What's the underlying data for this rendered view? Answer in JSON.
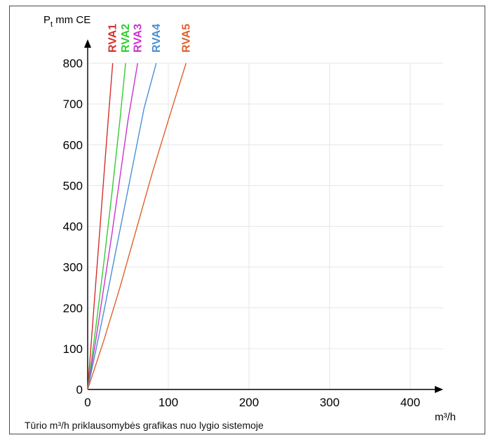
{
  "chart_data": {
    "type": "line",
    "ylabel": {
      "main": "P",
      "sub": "t",
      "rest": " mm CE"
    },
    "xlabel": "m³/h",
    "caption": "Tūrio m³/h priklausomybės grafikas nuo lygio sistemoje",
    "xlim": [
      0,
      440
    ],
    "ylim": [
      0,
      800
    ],
    "x_ticks": [
      0,
      100,
      200,
      300,
      400
    ],
    "y_ticks": [
      0,
      100,
      200,
      300,
      400,
      500,
      600,
      700,
      800
    ],
    "grid": true,
    "series": [
      {
        "name": "RVA1",
        "color": "#d0312d",
        "x": [
          0,
          5,
          10,
          15,
          20,
          25,
          31
        ],
        "y": [
          0,
          130,
          260,
          390,
          520,
          650,
          800
        ]
      },
      {
        "name": "RVA2",
        "color": "#33cc33",
        "x": [
          0,
          10,
          20,
          30,
          40,
          47
        ],
        "y": [
          0,
          150,
          310,
          480,
          660,
          800
        ]
      },
      {
        "name": "RVA3",
        "color": "#cc33cc",
        "x": [
          0,
          10,
          20,
          30,
          40,
          50,
          62
        ],
        "y": [
          0,
          120,
          250,
          380,
          520,
          660,
          800
        ]
      },
      {
        "name": "RVA4",
        "color": "#4a8fd6",
        "x": [
          0,
          10,
          20,
          30,
          40,
          50,
          60,
          70,
          85
        ],
        "y": [
          0,
          95,
          190,
          290,
          390,
          490,
          590,
          690,
          800
        ]
      },
      {
        "name": "RVA5",
        "color": "#e0602a",
        "x": [
          0,
          20,
          40,
          60,
          80,
          100,
          122
        ],
        "y": [
          0,
          120,
          250,
          390,
          530,
          660,
          800
        ]
      }
    ]
  }
}
